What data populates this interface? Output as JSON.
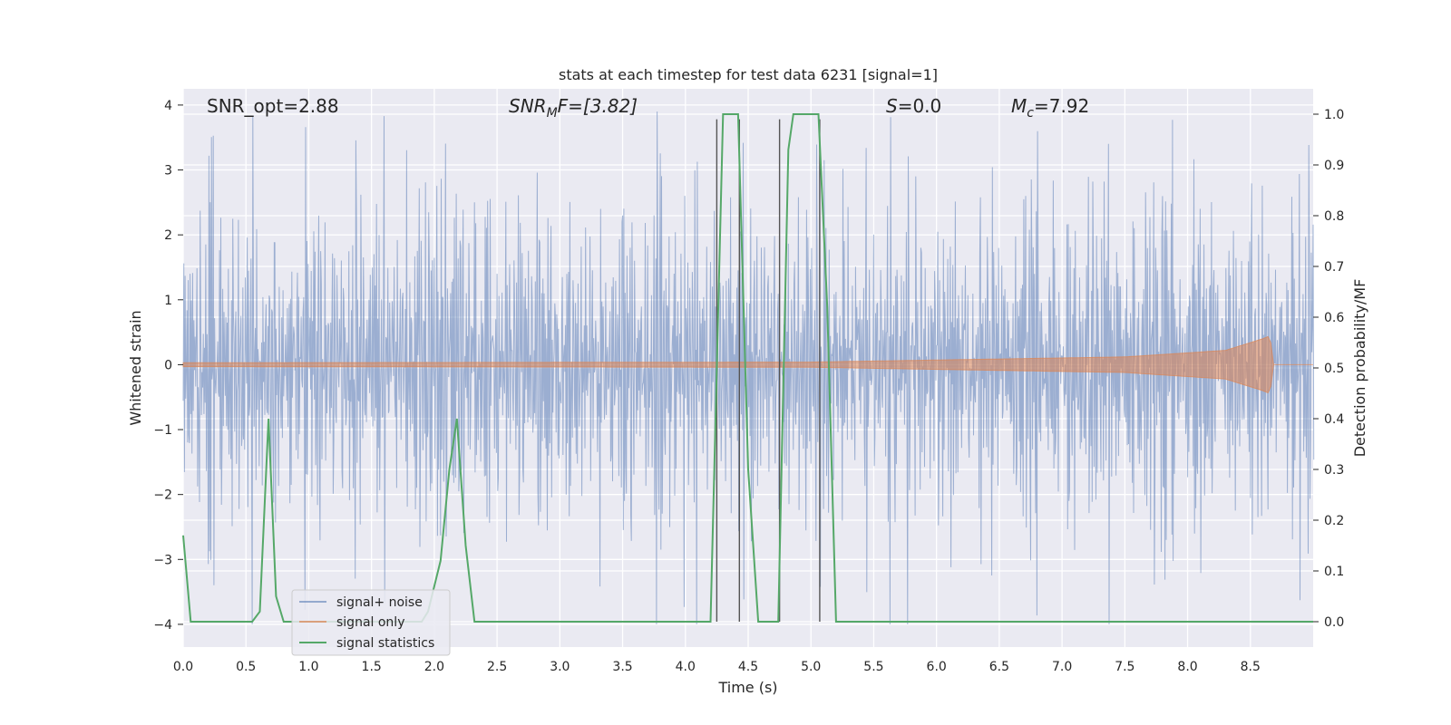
{
  "chart_data": {
    "type": "line",
    "title": "stats at each timestep for test data 6231 [signal=1]",
    "xlabel": "Time (s)",
    "ylabel": "Whitened strain",
    "y2label": "Detection probability/MF",
    "xlim": [
      0.0,
      9.0
    ],
    "ylim": [
      -4.35,
      4.25
    ],
    "y2lim": [
      -0.05,
      1.05
    ],
    "x_ticks": [
      "0.0",
      "0.5",
      "1.0",
      "1.5",
      "2.0",
      "2.5",
      "3.0",
      "3.5",
      "4.0",
      "4.5",
      "5.0",
      "5.5",
      "6.0",
      "6.5",
      "7.0",
      "7.5",
      "8.0",
      "8.5"
    ],
    "y_ticks": [
      "4",
      "3",
      "2",
      "1",
      "0",
      "−1",
      "−2",
      "−3",
      "−4"
    ],
    "y2_ticks": [
      "1.0",
      "0.9",
      "0.8",
      "0.7",
      "0.6",
      "0.5",
      "0.4",
      "0.3",
      "0.2",
      "0.1",
      "0.0"
    ],
    "grid": true,
    "legend_position": "lower-left",
    "annotations": {
      "snr_opt": "SNR_opt=2.88",
      "snr_mf_main": "SNR",
      "snr_mf_sub": "M",
      "snr_mf_rest": "F=[3.82]",
      "s_main": "S",
      "s_rest": "=0.0",
      "mc_main": "M",
      "mc_sub": "c",
      "mc_rest": "=7.92"
    },
    "series": [
      {
        "name": "signal+ noise",
        "color": "#4c72b0",
        "note": "whitened strain, dense noise roughly within -3.5..3.9",
        "envelope": {
          "typical_max": 2.0,
          "typical_min": -2.0,
          "peak_max": 3.9,
          "peak_min": -4.0
        }
      },
      {
        "name": "signal only",
        "color": "#dd8452",
        "note": "chirp envelope growing toward merger",
        "envelope_points": [
          [
            0.0,
            0.03
          ],
          [
            5.0,
            0.04
          ],
          [
            7.5,
            0.12
          ],
          [
            8.3,
            0.22
          ],
          [
            8.6,
            0.4
          ],
          [
            8.66,
            0.45
          ],
          [
            8.67,
            0.0
          ],
          [
            9.0,
            0.0
          ]
        ]
      },
      {
        "name": "signal statistics",
        "color": "#55a868",
        "points": [
          [
            0.0,
            0.17
          ],
          [
            0.06,
            0.0
          ],
          [
            0.12,
            0.0
          ],
          [
            0.55,
            0.0
          ],
          [
            0.61,
            0.02
          ],
          [
            0.68,
            0.4
          ],
          [
            0.74,
            0.05
          ],
          [
            0.8,
            0.0
          ],
          [
            1.2,
            0.0
          ],
          [
            1.9,
            0.0
          ],
          [
            1.95,
            0.02
          ],
          [
            2.05,
            0.12
          ],
          [
            2.12,
            0.3
          ],
          [
            2.18,
            0.4
          ],
          [
            2.25,
            0.15
          ],
          [
            2.32,
            0.0
          ],
          [
            2.36,
            0.0
          ],
          [
            4.2,
            0.0
          ],
          [
            4.3,
            1.0
          ],
          [
            4.42,
            1.0
          ],
          [
            4.5,
            0.3
          ],
          [
            4.58,
            0.0
          ],
          [
            4.74,
            0.0
          ],
          [
            4.82,
            0.93
          ],
          [
            4.86,
            1.0
          ],
          [
            5.06,
            1.0
          ],
          [
            5.13,
            0.62
          ],
          [
            5.2,
            0.0
          ],
          [
            5.26,
            0.0
          ],
          [
            9.0,
            0.0
          ]
        ]
      }
    ],
    "vlines": [
      {
        "x": 4.25,
        "y_top": 0.99
      },
      {
        "x": 4.43,
        "y_top": 0.99
      },
      {
        "x": 4.75,
        "y_top": 0.99
      },
      {
        "x": 5.07,
        "y_top": 0.99
      }
    ]
  },
  "legend": {
    "items": [
      {
        "label": "signal+ noise",
        "color": "#4c72b0"
      },
      {
        "label": "signal only",
        "color": "#dd8452"
      },
      {
        "label": "signal statistics",
        "color": "#55a868"
      }
    ]
  }
}
